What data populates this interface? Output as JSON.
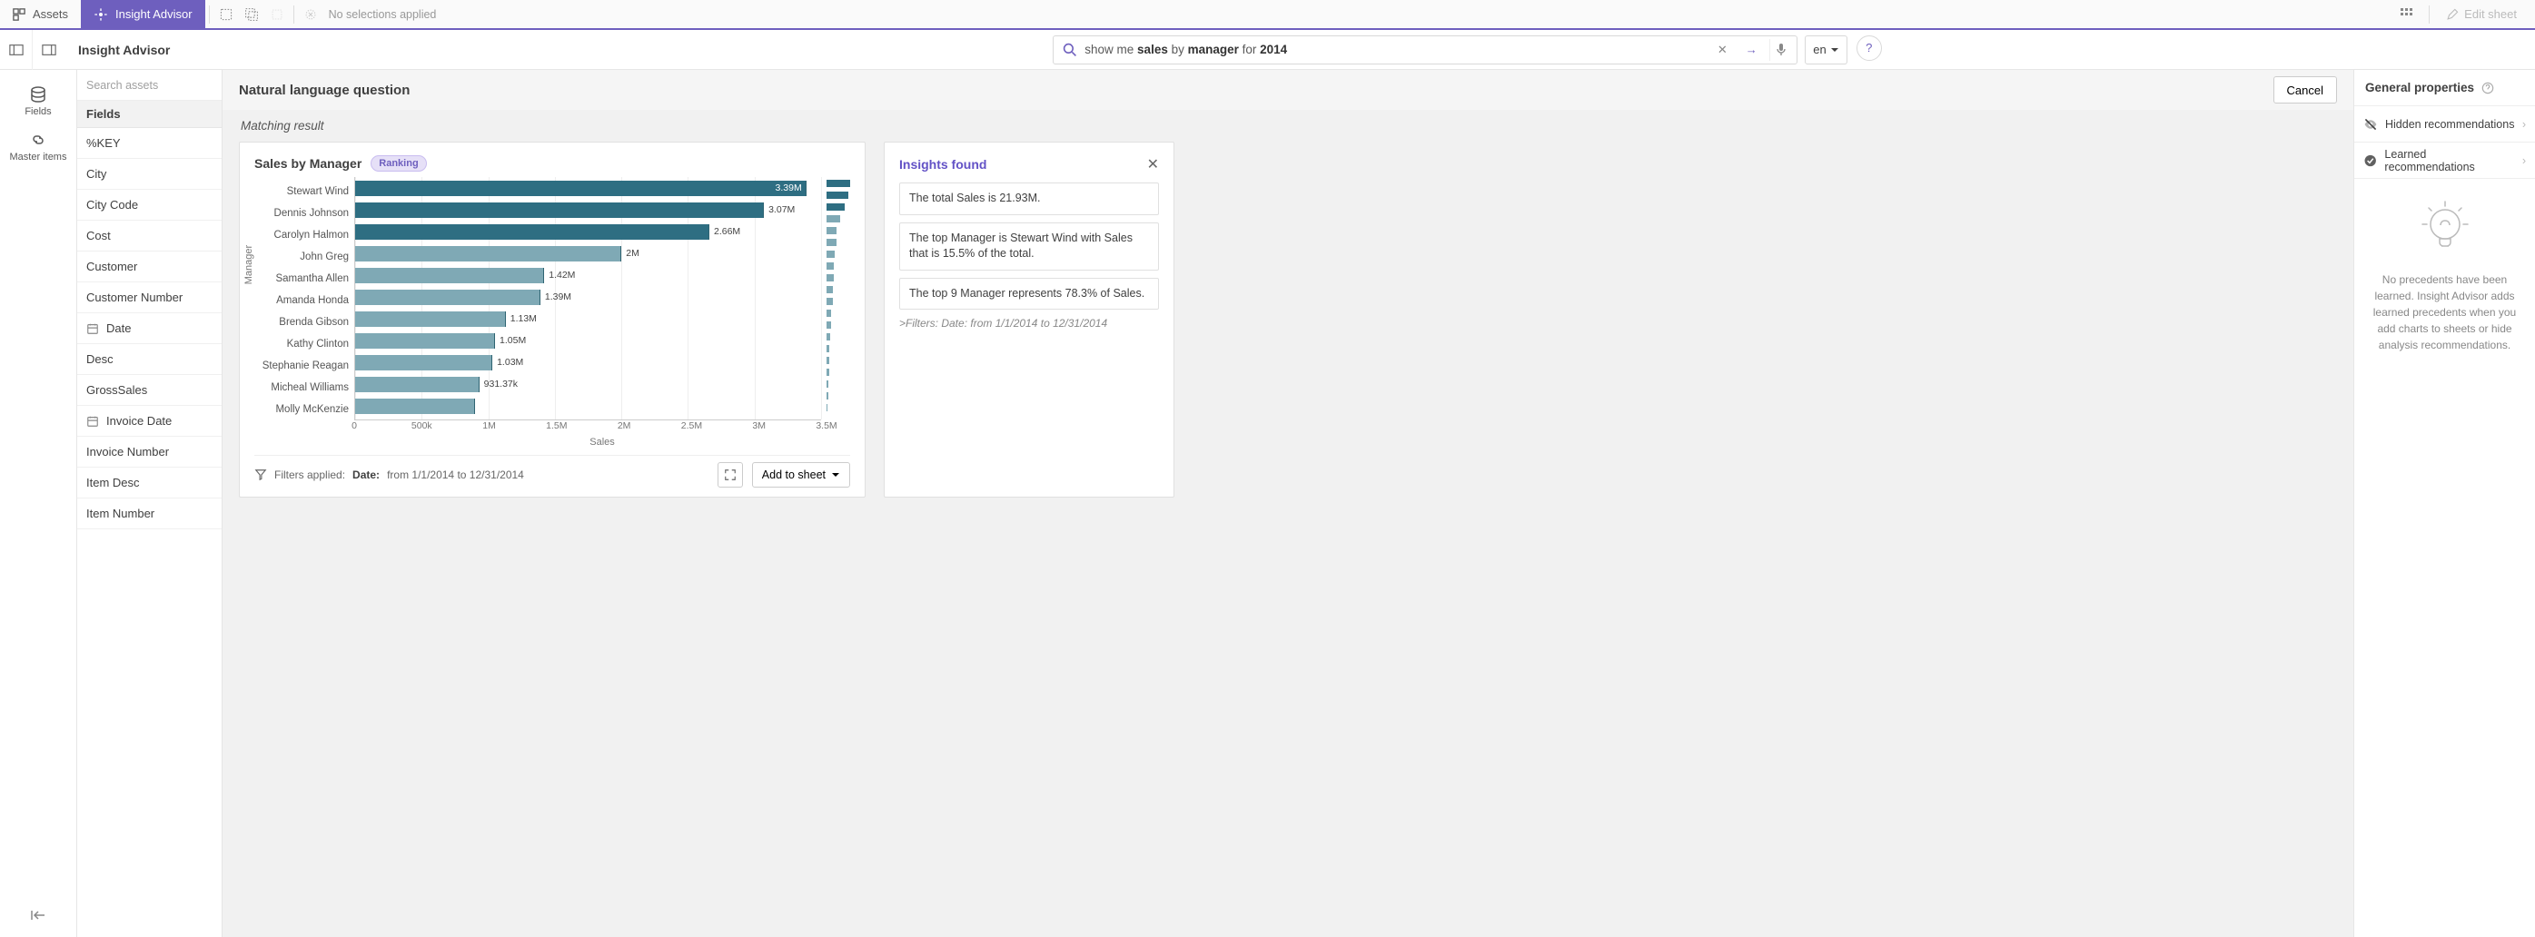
{
  "topbar": {
    "assets_label": "Assets",
    "insight_tab": "Insight Advisor",
    "no_selections": "No selections applied",
    "edit_sheet": "Edit sheet"
  },
  "header": {
    "title": "Insight Advisor",
    "query_prefix": "show me ",
    "query_b1": "sales",
    "query_mid1": " by ",
    "query_b2": "manager",
    "query_mid2": " for ",
    "query_b3": "2014",
    "lang": "en"
  },
  "navrail": {
    "fields": "Fields",
    "master": "Master items"
  },
  "fieldspanel": {
    "search_placeholder": "Search assets",
    "header": "Fields",
    "items": [
      {
        "label": "%KEY",
        "icon": null
      },
      {
        "label": "City",
        "icon": null
      },
      {
        "label": "City Code",
        "icon": null
      },
      {
        "label": "Cost",
        "icon": null
      },
      {
        "label": "Customer",
        "icon": null
      },
      {
        "label": "Customer Number",
        "icon": null
      },
      {
        "label": "Date",
        "icon": "calendar"
      },
      {
        "label": "Desc",
        "icon": null
      },
      {
        "label": "GrossSales",
        "icon": null
      },
      {
        "label": "Invoice Date",
        "icon": "calendar"
      },
      {
        "label": "Invoice Number",
        "icon": null
      },
      {
        "label": "Item Desc",
        "icon": null
      },
      {
        "label": "Item Number",
        "icon": null
      }
    ]
  },
  "center": {
    "question_header": "Natural language question",
    "cancel": "Cancel",
    "matching": "Matching result"
  },
  "chart": {
    "title": "Sales by Manager",
    "badge": "Ranking",
    "type": "bar",
    "y_label": "Manager",
    "x_label": "Sales",
    "xmax": 3500000,
    "xticks": [
      {
        "v": 0,
        "label": "0"
      },
      {
        "v": 500000,
        "label": "500k"
      },
      {
        "v": 1000000,
        "label": "1M"
      },
      {
        "v": 1500000,
        "label": "1.5M"
      },
      {
        "v": 2000000,
        "label": "2M"
      },
      {
        "v": 2500000,
        "label": "2.5M"
      },
      {
        "v": 3000000,
        "label": "3M"
      },
      {
        "v": 3500000,
        "label": "3.5M"
      }
    ],
    "bars": [
      {
        "name": "Stewart Wind",
        "value": 3390000,
        "label": "3.39M",
        "dark": true,
        "inside": true
      },
      {
        "name": "Dennis Johnson",
        "value": 3070000,
        "label": "3.07M",
        "dark": true,
        "inside": false
      },
      {
        "name": "Carolyn Halmon",
        "value": 2660000,
        "label": "2.66M",
        "dark": true,
        "inside": false
      },
      {
        "name": "John Greg",
        "value": 2000000,
        "label": "2M",
        "dark": false,
        "inside": false
      },
      {
        "name": "Samantha Allen",
        "value": 1420000,
        "label": "1.42M",
        "dark": false,
        "inside": false
      },
      {
        "name": "Amanda Honda",
        "value": 1390000,
        "label": "1.39M",
        "dark": false,
        "inside": false
      },
      {
        "name": "Brenda Gibson",
        "value": 1130000,
        "label": "1.13M",
        "dark": false,
        "inside": false
      },
      {
        "name": "Kathy Clinton",
        "value": 1050000,
        "label": "1.05M",
        "dark": false,
        "inside": false
      },
      {
        "name": "Stephanie Reagan",
        "value": 1030000,
        "label": "1.03M",
        "dark": false,
        "inside": false
      },
      {
        "name": "Micheal Williams",
        "value": 931370,
        "label": "931.37k",
        "dark": false,
        "inside": false
      },
      {
        "name": "Molly McKenzie",
        "value": 900000,
        "label": "",
        "dark": false,
        "inside": false
      }
    ],
    "minibars": [
      3390000,
      3070000,
      2660000,
      2000000,
      1420000,
      1390000,
      1130000,
      1050000,
      1030000,
      931370,
      900000,
      700000,
      650000,
      500000,
      450000,
      400000,
      350000,
      250000,
      200000,
      150000
    ],
    "bar_color_dark": "#2e6e82",
    "bar_color_light": "#7fa9b5",
    "grid_color": "#eeeeee"
  },
  "cardfoot": {
    "filters_label": "Filters applied:",
    "filter_field": "Date:",
    "filter_range": "from 1/1/2014 to 12/31/2014",
    "add_to_sheet": "Add to sheet"
  },
  "insights": {
    "title": "Insights found",
    "items": [
      "The total Sales is 21.93M.",
      "The top Manager is Stewart Wind with Sales that is 15.5% of the total.",
      "The top 9 Manager represents 78.3% of Sales."
    ],
    "filters": ">Filters: Date: from 1/1/2014 to 12/31/2014"
  },
  "rightpanel": {
    "header": "General properties",
    "hidden": "Hidden recommendations",
    "learned": "Learned recommendations",
    "empty": "No precedents have been learned. Insight Advisor adds learned precedents when you add charts to sheets or hide analysis recommendations."
  }
}
